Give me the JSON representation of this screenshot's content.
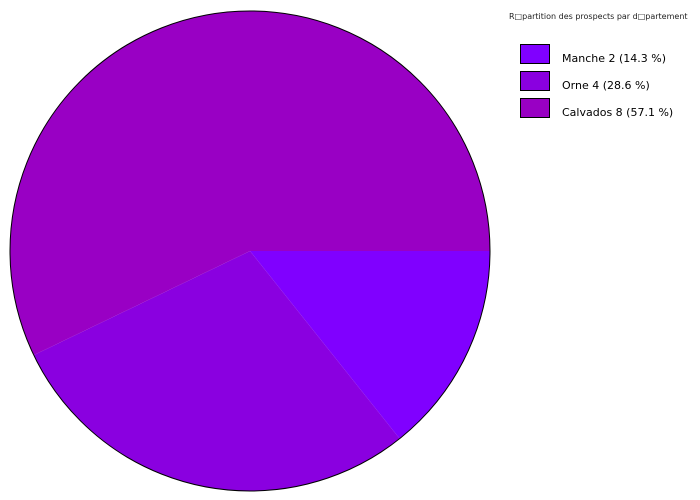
{
  "chart_data": {
    "type": "pie",
    "title": "R□partition des prospects par d□partement",
    "start_angle_deg": 0,
    "direction": "clockwise",
    "legend_position": "top-right",
    "slices": [
      {
        "label": "Manche 2 (14.3 %)",
        "name": "Manche",
        "value": 2,
        "percent": 14.3,
        "color": "#8000ff"
      },
      {
        "label": "Orne 4 (28.6 %)",
        "name": "Orne",
        "value": 4,
        "percent": 28.6,
        "color": "#8a00e0"
      },
      {
        "label": "Calvados 8 (57.1 %)",
        "name": "Calvados",
        "value": 8,
        "percent": 57.1,
        "color": "#9900c4"
      }
    ]
  }
}
